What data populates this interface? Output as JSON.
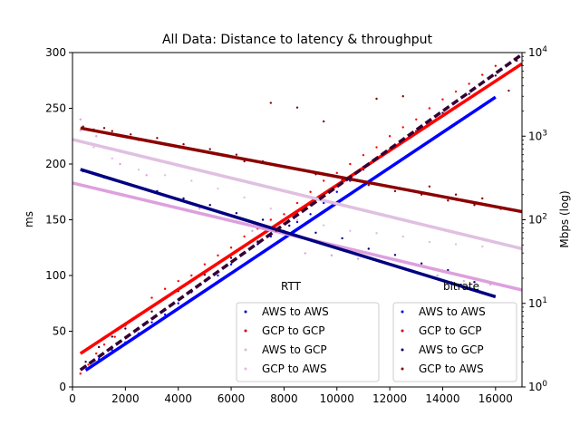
{
  "chart_data": {
    "type": "scatter",
    "title": "All Data: Distance to latency & throughput",
    "xlabel": "",
    "ylabel": "ms",
    "y2label": "Mbps (log)",
    "xlim": [
      0,
      17000
    ],
    "ylim": [
      0,
      300
    ],
    "y2lim": [
      1,
      10000
    ],
    "y2scale": "log",
    "x_ticks": [
      0,
      2000,
      4000,
      6000,
      8000,
      10000,
      12000,
      14000,
      16000
    ],
    "x_tick_labels": [
      "0",
      "2000",
      "4000",
      "6000",
      "8000",
      "10000",
      "12000",
      "14000",
      "16000"
    ],
    "y_ticks": [
      0,
      50,
      100,
      150,
      200,
      250,
      300
    ],
    "y_tick_labels": [
      "0",
      "50",
      "100",
      "150",
      "200",
      "250",
      "300"
    ],
    "y2_ticks": [
      1,
      10,
      100,
      1000,
      10000
    ],
    "y2_tick_labels": [
      "10^0",
      "10^1",
      "10^2",
      "10^3",
      "10^4"
    ],
    "grid": false,
    "legends": [
      {
        "title": "RTT",
        "placement": "lower-center",
        "entries": [
          {
            "label": "AWS to AWS",
            "color": "#0000cc"
          },
          {
            "label": "GCP to GCP",
            "color": "#cc0000"
          },
          {
            "label": "AWS to GCP",
            "color": "#d8bfd8"
          },
          {
            "label": "GCP to AWS",
            "color": "#e6b8e6"
          }
        ]
      },
      {
        "title": "bitrate",
        "placement": "lower-right",
        "entries": [
          {
            "label": "AWS to AWS",
            "color": "#0000cc"
          },
          {
            "label": "GCP to GCP",
            "color": "#cc0000"
          },
          {
            "label": "AWS to GCP",
            "color": "#000066"
          },
          {
            "label": "GCP to AWS",
            "color": "#8b0000"
          }
        ]
      }
    ],
    "series": [
      {
        "name": "AWS to AWS",
        "group": "RTT",
        "axis": "left",
        "color": "#0000ff",
        "fit": {
          "x": [
            500,
            16000
          ],
          "y": [
            15,
            260
          ]
        },
        "points": [
          [
            500,
            18
          ],
          [
            1000,
            25
          ],
          [
            1500,
            33
          ],
          [
            2000,
            40
          ],
          [
            2500,
            48
          ],
          [
            3000,
            58
          ],
          [
            3500,
            65
          ],
          [
            4000,
            75
          ],
          [
            4500,
            85
          ],
          [
            5000,
            95
          ],
          [
            5500,
            100
          ],
          [
            6000,
            110
          ],
          [
            6500,
            120
          ],
          [
            7000,
            128
          ],
          [
            7500,
            135
          ],
          [
            8000,
            140
          ],
          [
            8500,
            148
          ],
          [
            9000,
            155
          ],
          [
            9500,
            165
          ],
          [
            10000,
            175
          ],
          [
            10500,
            185
          ],
          [
            11000,
            195
          ],
          [
            11500,
            205
          ],
          [
            12000,
            212
          ],
          [
            12500,
            220
          ],
          [
            13000,
            228
          ]
        ]
      },
      {
        "name": "GCP to GCP",
        "group": "RTT",
        "axis": "left",
        "color": "#ff0000",
        "fit": {
          "x": [
            300,
            17000
          ],
          "y": [
            30,
            290
          ]
        },
        "points": [
          [
            300,
            12
          ],
          [
            600,
            20
          ],
          [
            900,
            30
          ],
          [
            1200,
            38
          ],
          [
            1600,
            45
          ],
          [
            2000,
            55
          ],
          [
            2500,
            65
          ],
          [
            3000,
            80
          ],
          [
            3500,
            88
          ],
          [
            4000,
            95
          ],
          [
            4500,
            100
          ],
          [
            5000,
            110
          ],
          [
            5500,
            118
          ],
          [
            6000,
            125
          ],
          [
            6500,
            135
          ],
          [
            7000,
            142
          ],
          [
            7500,
            150
          ],
          [
            8000,
            155
          ],
          [
            8500,
            165
          ],
          [
            9000,
            175
          ],
          [
            9500,
            185
          ],
          [
            10000,
            192
          ],
          [
            10500,
            200
          ],
          [
            11000,
            208
          ],
          [
            11500,
            215
          ],
          [
            12000,
            225
          ],
          [
            12500,
            233
          ],
          [
            13000,
            240
          ],
          [
            13500,
            250
          ],
          [
            14000,
            258
          ],
          [
            14500,
            265
          ],
          [
            15000,
            272
          ],
          [
            15500,
            280
          ],
          [
            16000,
            288
          ]
        ]
      },
      {
        "name": "AWS to GCP",
        "group": "RTT",
        "axis": "left",
        "color": "#e0c0e0",
        "fit": {
          "x": [
            0,
            17000
          ],
          "y": [
            222,
            124
          ]
        },
        "points": [
          [
            300,
            230
          ],
          [
            800,
            215
          ],
          [
            1500,
            205
          ],
          [
            2500,
            195
          ],
          [
            3500,
            190
          ],
          [
            4500,
            185
          ],
          [
            5500,
            178
          ],
          [
            6500,
            170
          ],
          [
            7500,
            160
          ],
          [
            8500,
            150
          ],
          [
            9500,
            145
          ],
          [
            10500,
            140
          ],
          [
            11500,
            138
          ],
          [
            12500,
            135
          ],
          [
            13500,
            130
          ],
          [
            14500,
            128
          ],
          [
            15500,
            126
          ]
        ]
      },
      {
        "name": "GCP to AWS",
        "group": "RTT",
        "axis": "left",
        "color": "#dda0dd",
        "fit": {
          "x": [
            0,
            17000
          ],
          "y": [
            183,
            87
          ]
        },
        "points": [
          [
            300,
            240
          ],
          [
            900,
            225
          ],
          [
            1800,
            200
          ],
          [
            2800,
            190
          ],
          [
            3800,
            170
          ],
          [
            4800,
            160
          ],
          [
            5800,
            150
          ],
          [
            6800,
            140
          ],
          [
            7800,
            130
          ],
          [
            8800,
            120
          ],
          [
            9800,
            118
          ],
          [
            10800,
            115
          ],
          [
            11800,
            112
          ],
          [
            12800,
            105
          ],
          [
            13800,
            100
          ],
          [
            14800,
            95
          ],
          [
            15800,
            92
          ]
        ]
      },
      {
        "name": "AWS to AWS",
        "group": "bitrate",
        "axis": "right",
        "color": "#000080",
        "fit": {
          "x": [
            300,
            16000
          ],
          "y": [
            400,
            12
          ]
        },
        "points": [
          [
            400,
            380
          ],
          [
            1200,
            320
          ],
          [
            2200,
            260
          ],
          [
            3200,
            220
          ],
          [
            4200,
            180
          ],
          [
            5200,
            150
          ],
          [
            6200,
            120
          ],
          [
            7200,
            100
          ],
          [
            8200,
            85
          ],
          [
            9200,
            70
          ],
          [
            10200,
            60
          ],
          [
            11200,
            45
          ],
          [
            12200,
            38
          ],
          [
            13200,
            30
          ],
          [
            14200,
            25
          ],
          [
            15200,
            18
          ]
        ]
      },
      {
        "name": "GCP to GCP",
        "group": "bitrate",
        "axis": "right",
        "color": "#8b0000",
        "fit": {
          "x": [
            300,
            17000
          ],
          "y": [
            1250,
            125
          ]
        },
        "points": [
          [
            400,
            1300
          ],
          [
            1200,
            1250
          ],
          [
            2200,
            1050
          ],
          [
            3200,
            950
          ],
          [
            4200,
            800
          ],
          [
            5200,
            700
          ],
          [
            6200,
            600
          ],
          [
            7200,
            500
          ],
          [
            8200,
            420
          ],
          [
            9200,
            350
          ],
          [
            10200,
            300
          ],
          [
            11200,
            260
          ],
          [
            12200,
            220
          ],
          [
            13200,
            200
          ],
          [
            14200,
            170
          ],
          [
            15200,
            150
          ],
          [
            16200,
            135
          ]
        ]
      },
      {
        "name": "AWS to GCP",
        "group": "bitrate",
        "axis": "right",
        "color": "#330033",
        "fit": {
          "x": [
            300,
            17000
          ],
          "y": [
            1.6,
            9500
          ]
        },
        "points": [
          [
            500,
            2
          ],
          [
            1000,
            3
          ],
          [
            1500,
            4
          ],
          [
            2000,
            5
          ],
          [
            3000,
            8
          ],
          [
            4000,
            14
          ],
          [
            5000,
            22
          ],
          [
            6000,
            35
          ],
          [
            7000,
            55
          ],
          [
            8000,
            90
          ],
          [
            9000,
            150
          ],
          [
            10000,
            260
          ],
          [
            11000,
            430
          ],
          [
            12000,
            700
          ],
          [
            13000,
            1150
          ],
          [
            14000,
            1900
          ],
          [
            15000,
            3200
          ],
          [
            16000,
            5300
          ],
          [
            16800,
            8000
          ]
        ]
      },
      {
        "name": "GCP to AWS",
        "group": "bitrate",
        "axis": "right",
        "color": "#800000",
        "points": [
          [
            800,
            1200
          ],
          [
            1500,
            1150
          ],
          [
            2500,
            900
          ],
          [
            3500,
            800
          ],
          [
            5000,
            650
          ],
          [
            6500,
            500
          ],
          [
            7500,
            2500
          ],
          [
            8500,
            2200
          ],
          [
            9500,
            1500
          ],
          [
            11500,
            2800
          ],
          [
            12500,
            3000
          ],
          [
            13500,
            250
          ],
          [
            14500,
            200
          ],
          [
            15500,
            180
          ],
          [
            16500,
            3500
          ]
        ]
      }
    ]
  }
}
